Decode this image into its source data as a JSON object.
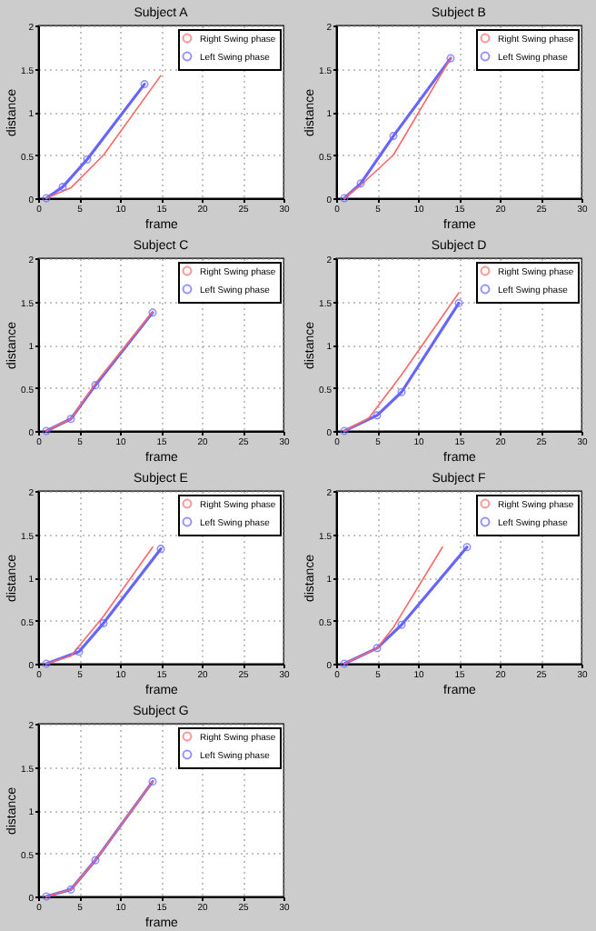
{
  "chart_data": [
    {
      "type": "line",
      "title": "Subject A",
      "xlabel": "frame",
      "ylabel": "distance",
      "xlim": [
        0,
        30
      ],
      "xticks": [
        0,
        5,
        10,
        15,
        20,
        25,
        30
      ],
      "ylim": [
        0,
        2
      ],
      "yticks": [
        0,
        0.5,
        1,
        1.5,
        2
      ],
      "grid": true,
      "legend": "top right",
      "series": [
        {
          "name": "Right Swing phase",
          "color": "#ff6666",
          "marker": "none",
          "x": [
            1,
            4,
            8,
            15
          ],
          "values": [
            0,
            0.12,
            0.5,
            1.42
          ]
        },
        {
          "name": "Left Swing phase",
          "color": "#6666ff",
          "marker": "circle",
          "x": [
            1,
            3,
            6,
            13
          ],
          "values": [
            0,
            0.13,
            0.45,
            1.32
          ]
        }
      ]
    },
    {
      "type": "line",
      "title": "Subject B",
      "xlabel": "frame",
      "ylabel": "distance",
      "xlim": [
        0,
        30
      ],
      "xticks": [
        0,
        5,
        10,
        15,
        20,
        25,
        30
      ],
      "ylim": [
        0,
        2
      ],
      "yticks": [
        0,
        0.5,
        1,
        1.5,
        2
      ],
      "grid": true,
      "legend": "top right",
      "series": [
        {
          "name": "Right Swing phase",
          "color": "#ff6666",
          "marker": "none",
          "x": [
            1,
            3,
            7,
            14
          ],
          "values": [
            0,
            0.15,
            0.5,
            1.62
          ]
        },
        {
          "name": "Left Swing phase",
          "color": "#6666ff",
          "marker": "circle",
          "x": [
            1,
            3,
            7,
            14
          ],
          "values": [
            0,
            0.17,
            0.72,
            1.62
          ]
        }
      ]
    },
    {
      "type": "line",
      "title": "Subject C",
      "xlabel": "frame",
      "ylabel": "distance",
      "xlim": [
        0,
        30
      ],
      "xticks": [
        0,
        5,
        10,
        15,
        20,
        25,
        30
      ],
      "ylim": [
        0,
        2
      ],
      "yticks": [
        0,
        0.5,
        1,
        1.5,
        2
      ],
      "grid": true,
      "legend": "top right",
      "series": [
        {
          "name": "Right Swing phase",
          "color": "#ff6666",
          "marker": "none",
          "x": [
            1,
            4,
            7,
            14
          ],
          "values": [
            0,
            0.14,
            0.55,
            1.38
          ]
        },
        {
          "name": "Left Swing phase",
          "color": "#6666ff",
          "marker": "circle",
          "x": [
            1,
            4,
            7,
            14
          ],
          "values": [
            0,
            0.14,
            0.53,
            1.37
          ]
        }
      ]
    },
    {
      "type": "line",
      "title": "Subject D",
      "xlabel": "frame",
      "ylabel": "distance",
      "xlim": [
        0,
        30
      ],
      "xticks": [
        0,
        5,
        10,
        15,
        20,
        25,
        30
      ],
      "ylim": [
        0,
        2
      ],
      "yticks": [
        0,
        0.5,
        1,
        1.5,
        2
      ],
      "grid": true,
      "legend": "top right",
      "series": [
        {
          "name": "Right Swing phase",
          "color": "#ff6666",
          "marker": "none",
          "x": [
            1,
            4,
            8,
            15
          ],
          "values": [
            0,
            0.15,
            0.65,
            1.6
          ]
        },
        {
          "name": "Left Swing phase",
          "color": "#6666ff",
          "marker": "circle",
          "x": [
            1,
            5,
            8,
            15
          ],
          "values": [
            0,
            0.18,
            0.45,
            1.48
          ]
        }
      ]
    },
    {
      "type": "line",
      "title": "Subject E",
      "xlabel": "frame",
      "ylabel": "distance",
      "xlim": [
        0,
        30
      ],
      "xticks": [
        0,
        5,
        10,
        15,
        20,
        25,
        30
      ],
      "ylim": [
        0,
        2
      ],
      "yticks": [
        0,
        0.5,
        1,
        1.5,
        2
      ],
      "grid": true,
      "legend": "top right",
      "series": [
        {
          "name": "Right Swing phase",
          "color": "#ff6666",
          "marker": "none",
          "x": [
            1,
            4,
            8,
            14
          ],
          "values": [
            0,
            0.09,
            0.55,
            1.35
          ]
        },
        {
          "name": "Left Swing phase",
          "color": "#6666ff",
          "marker": "circle",
          "x": [
            1,
            5,
            8,
            15
          ],
          "values": [
            0,
            0.14,
            0.47,
            1.33
          ]
        }
      ]
    },
    {
      "type": "line",
      "title": "Subject F",
      "xlabel": "frame",
      "ylabel": "distance",
      "xlim": [
        0,
        30
      ],
      "xticks": [
        0,
        5,
        10,
        15,
        20,
        25,
        30
      ],
      "ylim": [
        0,
        2
      ],
      "yticks": [
        0,
        0.5,
        1,
        1.5,
        2
      ],
      "grid": true,
      "legend": "top right",
      "series": [
        {
          "name": "Right Swing phase",
          "color": "#ff6666",
          "marker": "none",
          "x": [
            1,
            5,
            7,
            13
          ],
          "values": [
            0,
            0.18,
            0.42,
            1.35
          ]
        },
        {
          "name": "Left Swing phase",
          "color": "#6666ff",
          "marker": "circle",
          "x": [
            1,
            5,
            8,
            16
          ],
          "values": [
            0,
            0.18,
            0.45,
            1.35
          ]
        }
      ]
    },
    {
      "type": "line",
      "title": "Subject G",
      "xlabel": "frame",
      "ylabel": "distance",
      "xlim": [
        0,
        30
      ],
      "xticks": [
        0,
        5,
        10,
        15,
        20,
        25,
        30
      ],
      "ylim": [
        0,
        2
      ],
      "yticks": [
        0,
        0.5,
        1,
        1.5,
        2
      ],
      "grid": true,
      "legend": "top right",
      "series": [
        {
          "name": "Right Swing phase",
          "color": "#ff6666",
          "marker": "none",
          "x": [
            1,
            4,
            7,
            14
          ],
          "values": [
            0,
            0.08,
            0.42,
            1.33
          ]
        },
        {
          "name": "Left Swing phase",
          "color": "#6666ff",
          "marker": "circle",
          "x": [
            1,
            4,
            7,
            14
          ],
          "values": [
            0,
            0.08,
            0.42,
            1.33
          ]
        }
      ]
    }
  ]
}
